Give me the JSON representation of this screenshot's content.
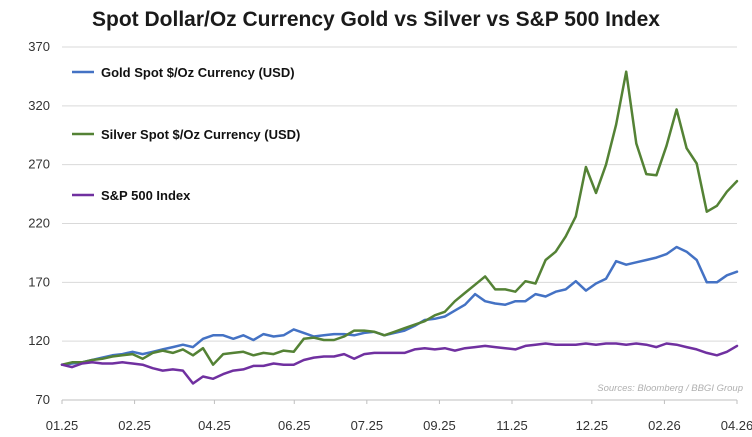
{
  "chart_data": {
    "type": "line",
    "title": "Spot Dollar/Oz Currency Gold vs Silver vs S&P 500 Index",
    "xlabel": "",
    "ylabel": "",
    "ylim": [
      70,
      370
    ],
    "yticks": [
      70,
      120,
      170,
      220,
      270,
      320,
      370
    ],
    "xtick_labels": [
      "01.25",
      "02.25",
      "04.25",
      "06.25",
      "07.25",
      "09.25",
      "11.25",
      "12.25",
      "02.26",
      "04.26"
    ],
    "grid": "horizontal",
    "legend_position": "top-left",
    "source": "Sources: Bloomberg / BBGI Group",
    "series": [
      {
        "name": "Gold Spot $/Oz Currency (USD)",
        "color": "#4472C4",
        "values": [
          100,
          101,
          102,
          104,
          106,
          108,
          109,
          111,
          109,
          111,
          113,
          115,
          117,
          115,
          122,
          125,
          125,
          122,
          125,
          121,
          126,
          124,
          125,
          130,
          127,
          124,
          125,
          126,
          126,
          125,
          127,
          128,
          125,
          127,
          129,
          133,
          138,
          139,
          141,
          146,
          151,
          160,
          154,
          152,
          151,
          154,
          154,
          160,
          158,
          162,
          164,
          171,
          163,
          169,
          173,
          188,
          185,
          187,
          189,
          191,
          194,
          200,
          196,
          189,
          170,
          170,
          176,
          179
        ]
      },
      {
        "name": "Silver Spot $/Oz Currency (USD)",
        "color": "#548235",
        "values": [
          100,
          102,
          102,
          104,
          105,
          107,
          108,
          109,
          105,
          110,
          112,
          110,
          113,
          108,
          114,
          100,
          109,
          110,
          111,
          108,
          110,
          109,
          112,
          111,
          122,
          123,
          121,
          121,
          124,
          129,
          129,
          128,
          125,
          128,
          131,
          134,
          137,
          142,
          145,
          154,
          161,
          168,
          175,
          164,
          164,
          162,
          171,
          169,
          189,
          196,
          209,
          226,
          268,
          246,
          270,
          304,
          349,
          288,
          262,
          261,
          286,
          317,
          284,
          271,
          230,
          235,
          247,
          256
        ]
      },
      {
        "name": "S&P 500 Index",
        "color": "#7030A0",
        "values": [
          100,
          98,
          101,
          102,
          101,
          101,
          102,
          101,
          100,
          97,
          95,
          96,
          95,
          84,
          90,
          88,
          92,
          95,
          96,
          99,
          99,
          101,
          100,
          100,
          104,
          106,
          107,
          107,
          109,
          105,
          109,
          110,
          110,
          110,
          110,
          113,
          114,
          113,
          114,
          112,
          114,
          115,
          116,
          115,
          114,
          113,
          116,
          117,
          118,
          117,
          117,
          117,
          118,
          117,
          118,
          118,
          117,
          118,
          117,
          115,
          118,
          117,
          115,
          113,
          110,
          108,
          111,
          116
        ]
      }
    ]
  }
}
